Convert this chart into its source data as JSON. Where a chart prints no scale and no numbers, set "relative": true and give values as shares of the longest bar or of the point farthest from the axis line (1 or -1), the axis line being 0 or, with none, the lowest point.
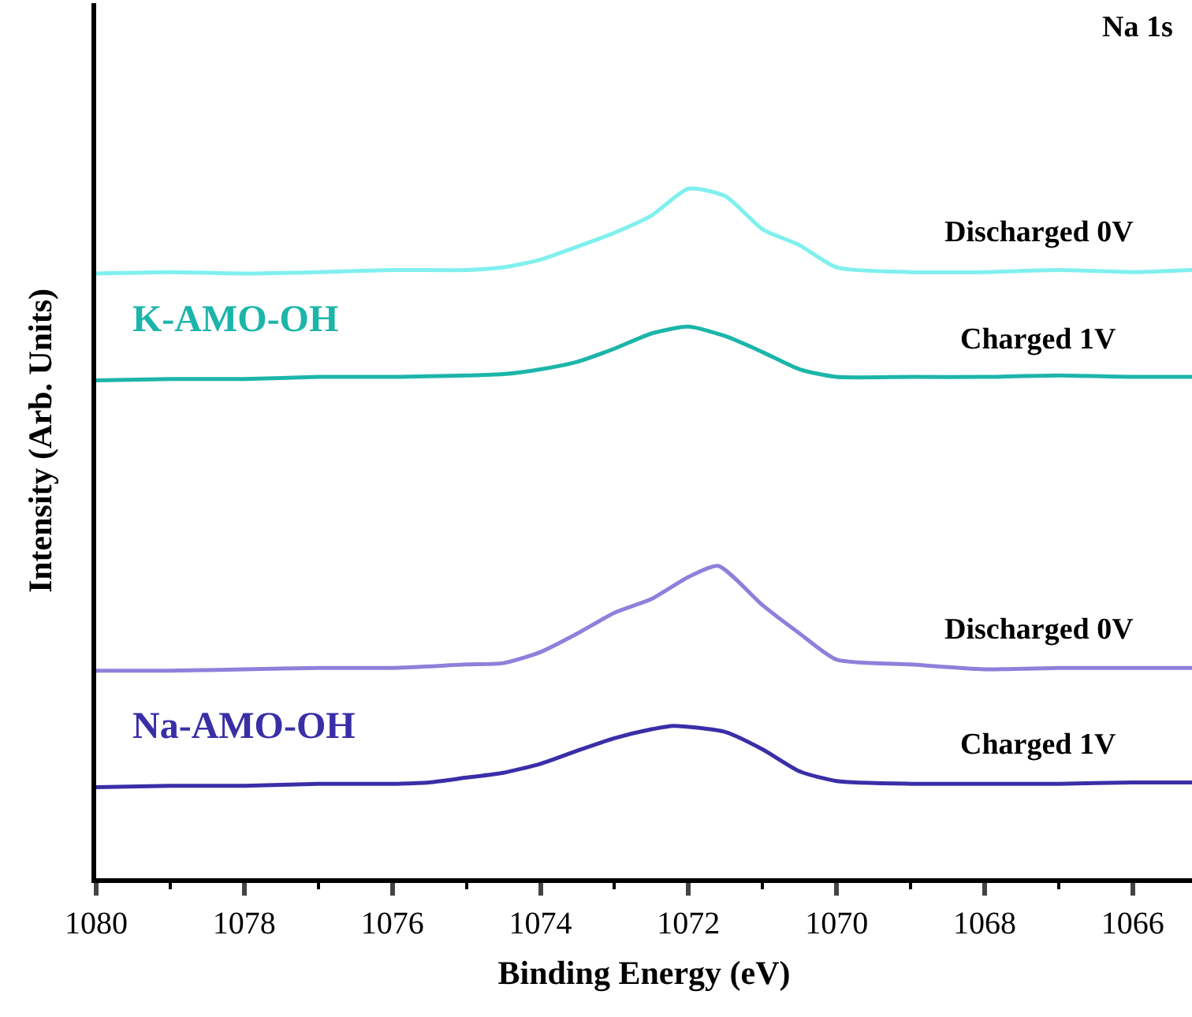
{
  "chart_data": {
    "type": "line",
    "relative": true,
    "xlabel": "Binding Energy (eV)",
    "ylabel": "Intensity (Arb. Units)",
    "xlim": [
      1080,
      1065.2
    ],
    "xticks": [
      1080,
      {
        "value": 1079,
        "label": null
      },
      1078,
      {
        "value": 1077,
        "label": null
      },
      1076,
      {
        "value": 1075,
        "label": null
      },
      1074,
      {
        "value": 1073,
        "label": null
      },
      1072,
      {
        "value": 1071,
        "label": null
      },
      1070,
      {
        "value": 1069,
        "label": null
      },
      1068,
      {
        "value": 1067,
        "label": null
      },
      1066
    ],
    "grid": false,
    "marker": "none",
    "line_style": "solid",
    "series": [
      {
        "color": "#80f0ee",
        "x": [
          1080,
          1079,
          1078,
          1077,
          1076,
          1075,
          1074.5,
          1074,
          1073.5,
          1073,
          1072.5,
          1072,
          1071.5,
          1071,
          1070.5,
          1070,
          1069,
          1068,
          1067,
          1066,
          1065.2
        ],
        "values": [
          0.877,
          0.879,
          0.877,
          0.879,
          0.882,
          0.882,
          0.886,
          0.897,
          0.916,
          0.936,
          0.961,
          1.0,
          0.989,
          0.941,
          0.918,
          0.886,
          0.879,
          0.879,
          0.882,
          0.879,
          0.882
        ]
      },
      {
        "color": "#1cb5aa",
        "x": [
          1080,
          1079,
          1078,
          1077,
          1076,
          1075,
          1074.5,
          1074,
          1073.5,
          1073,
          1072.5,
          1072,
          1071.5,
          1071,
          1070.5,
          1070,
          1069,
          1068,
          1067,
          1066,
          1065.2
        ],
        "values": [
          0.722,
          0.724,
          0.724,
          0.727,
          0.727,
          0.729,
          0.731,
          0.738,
          0.749,
          0.768,
          0.79,
          0.8,
          0.786,
          0.763,
          0.738,
          0.727,
          0.727,
          0.727,
          0.729,
          0.727,
          0.727
        ]
      },
      {
        "color": "#8f80dc",
        "x": [
          1080,
          1079,
          1078,
          1077,
          1076,
          1075,
          1074.5,
          1074,
          1073.5,
          1073,
          1072.5,
          1072,
          1071.6,
          1071,
          1070.5,
          1070,
          1069,
          1068,
          1067,
          1066,
          1065.2
        ],
        "values": [
          0.301,
          0.301,
          0.303,
          0.305,
          0.305,
          0.31,
          0.312,
          0.328,
          0.355,
          0.385,
          0.405,
          0.437,
          0.453,
          0.396,
          0.355,
          0.317,
          0.31,
          0.303,
          0.305,
          0.305,
          0.305
        ]
      },
      {
        "color": "#3a2ea8",
        "x": [
          1080,
          1079,
          1078,
          1077,
          1076,
          1075.5,
          1075,
          1074.5,
          1074,
          1073.5,
          1073,
          1072.5,
          1072.2,
          1071.5,
          1071,
          1070.5,
          1070,
          1069,
          1068,
          1067,
          1066,
          1065.2
        ],
        "values": [
          0.132,
          0.134,
          0.134,
          0.137,
          0.137,
          0.139,
          0.146,
          0.153,
          0.166,
          0.185,
          0.203,
          0.216,
          0.221,
          0.212,
          0.187,
          0.155,
          0.141,
          0.137,
          0.137,
          0.137,
          0.139,
          0.139
        ]
      }
    ],
    "annotations": [
      "Na 1s",
      "Discharged 0V",
      "Charged 1V",
      "Discharged 0V",
      "Charged 1V",
      "K-AMO-OH",
      "Na-AMO-OH"
    ]
  }
}
